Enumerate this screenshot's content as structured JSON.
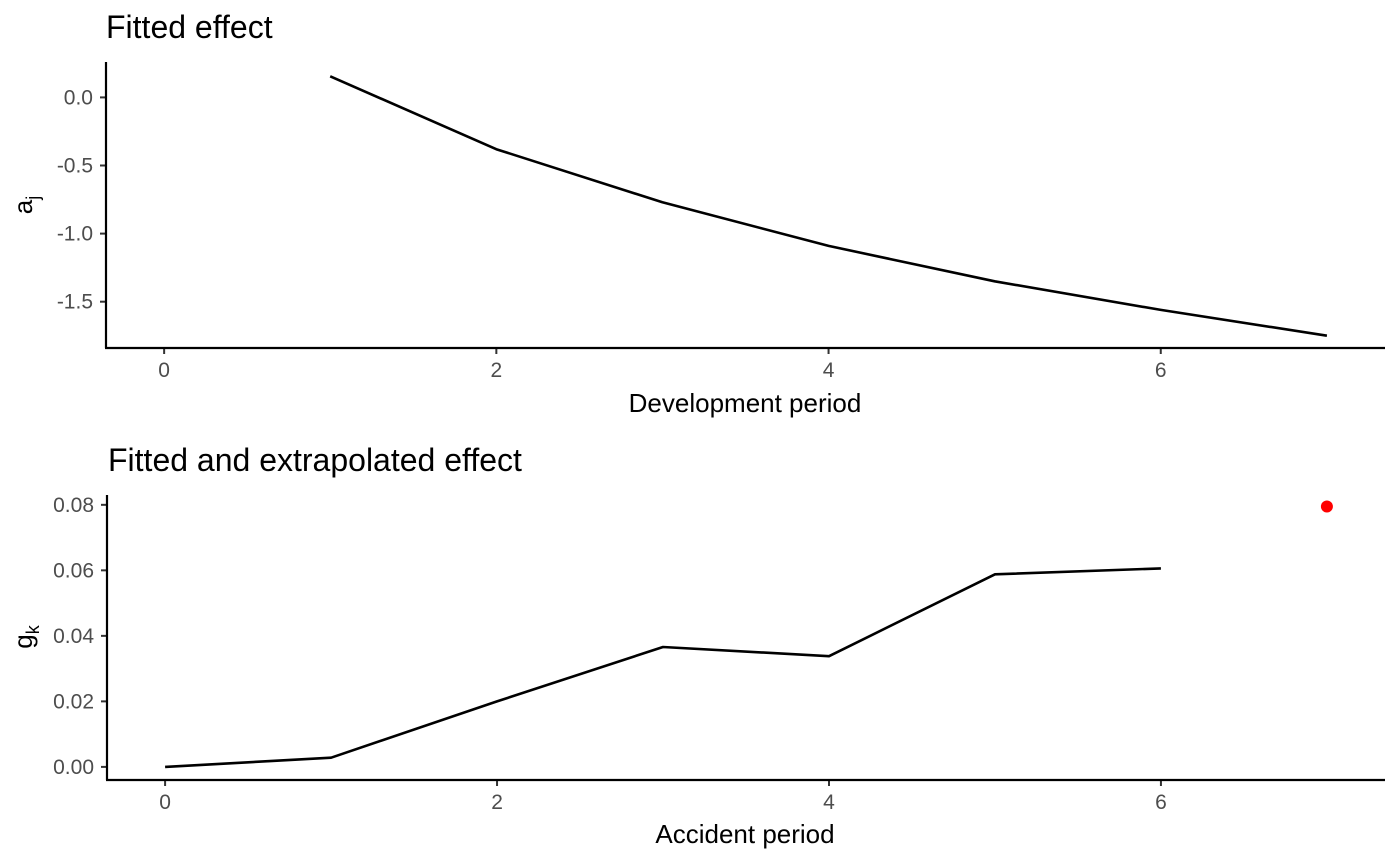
{
  "chart_data": [
    {
      "type": "line",
      "title": "Fitted effect",
      "xlabel": "Development period",
      "ylabel_base": "a",
      "ylabel_sub": "j",
      "x": [
        1,
        2,
        3,
        4,
        5,
        6,
        7
      ],
      "series": [
        {
          "values": [
            0.155,
            -0.38,
            -0.77,
            -1.09,
            -1.35,
            -1.56,
            -1.75
          ]
        }
      ],
      "points": [],
      "xlim": [
        -0.35,
        7.35
      ],
      "ylim": [
        -1.84,
        0.26
      ],
      "x_ticks": [
        0,
        2,
        4,
        6
      ],
      "x_tick_labels": [
        "0",
        "2",
        "4",
        "6"
      ],
      "y_ticks": [
        0.0,
        -0.5,
        -1.0,
        -1.5
      ],
      "y_tick_labels": [
        "0.0",
        "-0.5",
        "-1.0",
        "-1.5"
      ],
      "grid": false
    },
    {
      "type": "line",
      "title": "Fitted and extrapolated effect",
      "xlabel": "Accident period",
      "ylabel_base": "g",
      "ylabel_sub": "k",
      "x": [
        0,
        1,
        2,
        3,
        4,
        5,
        6
      ],
      "series": [
        {
          "values": [
            0.0,
            0.0028,
            0.02,
            0.0366,
            0.0338,
            0.0588,
            0.0606
          ]
        }
      ],
      "points": [
        {
          "x": 7,
          "y": 0.0795,
          "color": "#ff0000"
        }
      ],
      "xlim": [
        -0.35,
        7.35
      ],
      "ylim": [
        -0.004,
        0.083
      ],
      "x_ticks": [
        0,
        2,
        4,
        6
      ],
      "x_tick_labels": [
        "0",
        "2",
        "4",
        "6"
      ],
      "y_ticks": [
        0.08,
        0.06,
        0.04,
        0.02,
        0.0
      ],
      "y_tick_labels": [
        "0.08",
        "0.06",
        "0.04",
        "0.02",
        "0.00"
      ],
      "grid": false
    }
  ]
}
